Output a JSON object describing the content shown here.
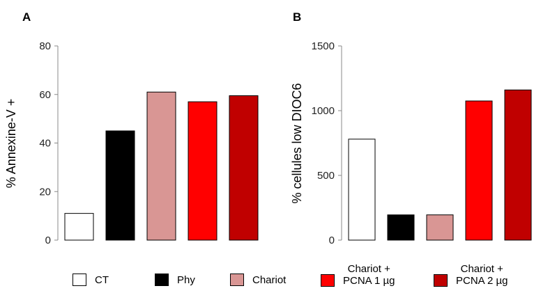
{
  "panels": {
    "a": "A",
    "b": "B"
  },
  "legend": [
    {
      "line1": "CT",
      "line2": "",
      "color": "#ffffff"
    },
    {
      "line1": "Phy",
      "line2": "",
      "color": "#000000"
    },
    {
      "line1": "Chariot",
      "line2": "",
      "color": "#d99694"
    },
    {
      "line1": "Chariot +",
      "line2": "PCNA 1 µg",
      "color": "#ff0000"
    },
    {
      "line1": "Chariot +",
      "line2": "PCNA 2 µg",
      "color": "#c00000"
    }
  ],
  "chart_data": [
    {
      "type": "bar",
      "title": "",
      "xlabel": "",
      "ylabel": "% Annexine-V +",
      "categories": [
        "CT",
        "Phy",
        "Chariot",
        "Chariot + PCNA 1 µg",
        "Chariot + PCNA 2 µg"
      ],
      "values": [
        11,
        45,
        61,
        57,
        59.5
      ],
      "colors": [
        "#ffffff",
        "#000000",
        "#d99694",
        "#ff0000",
        "#c00000"
      ],
      "ylim": [
        0,
        80
      ],
      "yticks": [
        0,
        20,
        40,
        60,
        80
      ],
      "ytick_labels": [
        "0",
        "20",
        "40",
        "60",
        "80"
      ],
      "grid": false,
      "legend": "bottom"
    },
    {
      "type": "bar",
      "title": "",
      "xlabel": "",
      "ylabel": "% cellules low DIOC6",
      "categories": [
        "CT",
        "Phy",
        "Chariot",
        "Chariot + PCNA 1 µg",
        "Chariot + PCNA 2 µg"
      ],
      "values": [
        780,
        195,
        195,
        1075,
        1160
      ],
      "colors": [
        "#ffffff",
        "#000000",
        "#d99694",
        "#ff0000",
        "#c00000"
      ],
      "ylim": [
        0,
        1500
      ],
      "yticks": [
        0,
        500,
        1000,
        1500
      ],
      "ytick_labels": [
        "0",
        "500",
        "1000",
        "1500"
      ],
      "grid": false,
      "legend": "bottom"
    }
  ]
}
